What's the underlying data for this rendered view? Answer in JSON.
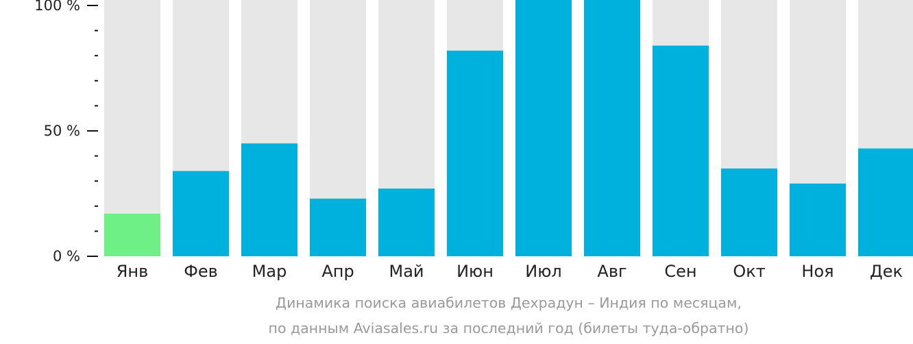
{
  "chart_data": {
    "type": "bar",
    "categories": [
      "Янв",
      "Фев",
      "Мар",
      "Апр",
      "Май",
      "Июн",
      "Июл",
      "Авг",
      "Сен",
      "Окт",
      "Ноя",
      "Дек"
    ],
    "values": [
      17,
      34,
      45,
      23,
      27,
      82,
      100,
      100,
      84,
      35,
      29,
      43
    ],
    "ylim": [
      0,
      100
    ],
    "yticks": [
      "0 %",
      "50 %",
      "100 %"
    ],
    "highlight_index": 0,
    "colors": {
      "bar": "#00b0dd",
      "bar_highlight": "#6ff087",
      "track": "#e7e7e7",
      "axis": "#111111"
    }
  },
  "caption": {
    "line1": "Динамика поиска авиабилетов Дехрадун – Индия по месяцам,",
    "line2": "по данным Aviasales.ru за последний год (билеты туда-обратно)"
  }
}
